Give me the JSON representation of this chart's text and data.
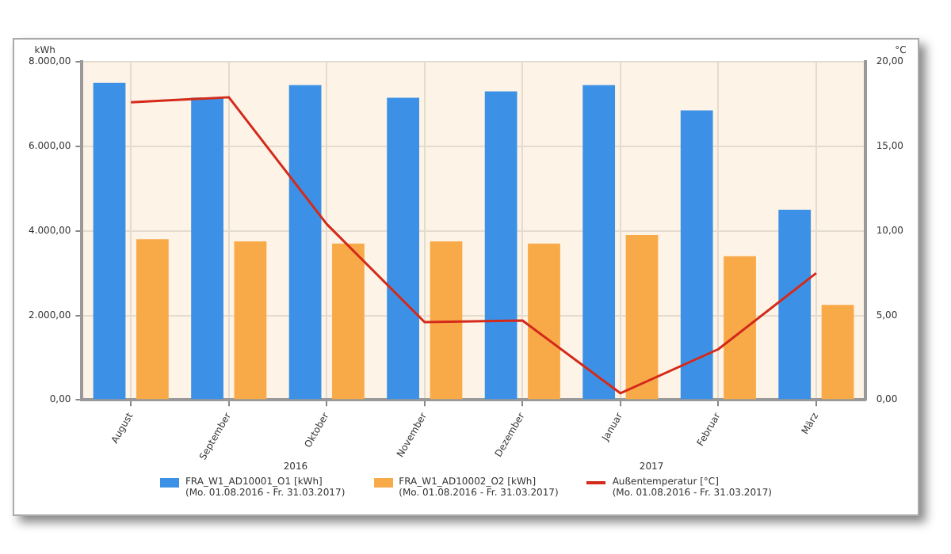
{
  "chart_data": {
    "type": "bar",
    "ylabel": "kWh",
    "y2label": "°C",
    "categories": [
      "August",
      "September",
      "Oktober",
      "November",
      "Dezember",
      "Januar",
      "Februar",
      "März"
    ],
    "series": [
      {
        "name": "FRA_W1_AD10001_O1 [kWh]\n(Mo. 01.08.2016 - Fr. 31.03.2017)",
        "color": "#3c91e6",
        "values": [
          7500,
          7150,
          7450,
          7150,
          7300,
          7450,
          6850,
          4500
        ]
      },
      {
        "name": "FRA_W1_AD10002_O2 [kWh]\n(Mo. 01.08.2016 - Fr. 31.03.2017)",
        "color": "#f9aa48",
        "values": [
          3800,
          3750,
          3700,
          3750,
          3700,
          3900,
          3400,
          2250
        ]
      },
      {
        "name": "Außentemperatur [°C]\n(Mo. 01.08.2016 - Fr. 31.03.2017)",
        "type": "line",
        "axis": "y2",
        "color": "#d42a1a",
        "values": [
          17.6,
          17.9,
          10.4,
          4.6,
          4.7,
          0.4,
          3.0,
          7.5
        ]
      }
    ],
    "ylim": [
      0,
      8000
    ],
    "yticks": [
      {
        "value": 0,
        "label": "0,00"
      },
      {
        "value": 2000,
        "label": "2.000,00"
      },
      {
        "value": 4000,
        "label": "4.000,00"
      },
      {
        "value": 6000,
        "label": "6.000,00"
      },
      {
        "value": 8000,
        "label": "8.000,00"
      }
    ],
    "y2lim": [
      0,
      20
    ],
    "y2ticks": [
      {
        "value": 0,
        "label": "0,00"
      },
      {
        "value": 5,
        "label": "5,00"
      },
      {
        "value": 10,
        "label": "10,00"
      },
      {
        "value": 15,
        "label": "15,00"
      },
      {
        "value": 20,
        "label": "20,00"
      }
    ],
    "annotations": [
      "2016",
      "2017"
    ],
    "grid": true,
    "legend": "bottom",
    "marker": "none",
    "line_style": "solid"
  }
}
